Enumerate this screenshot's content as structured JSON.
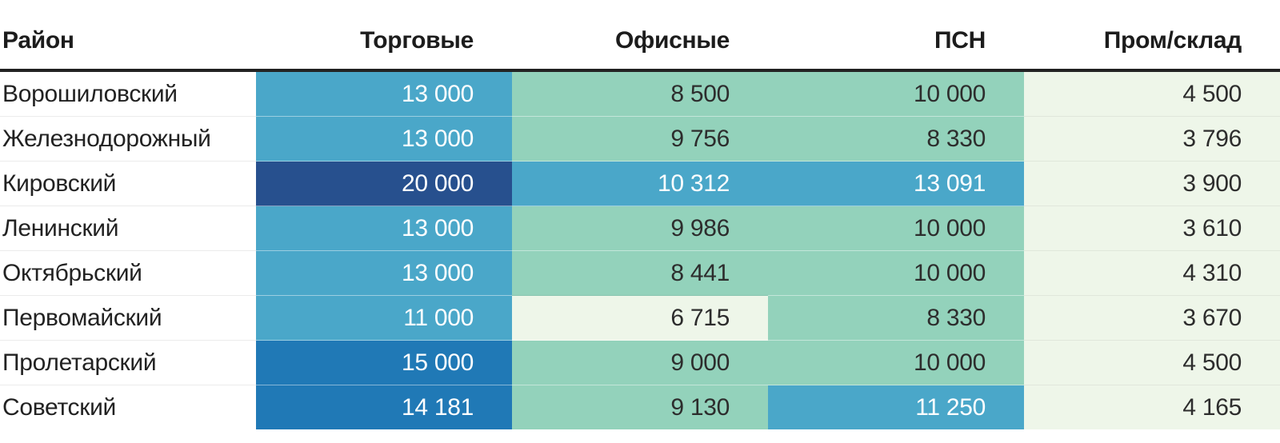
{
  "table": {
    "headers": [
      "Район",
      "Торговые",
      "Офисные",
      "ПСН",
      "Пром/склад"
    ],
    "rows": [
      {
        "district": "Ворошиловский",
        "cells": [
          {
            "value": "13 000",
            "bin": 3
          },
          {
            "value": "8 500",
            "bin": 2
          },
          {
            "value": "10 000",
            "bin": 2
          },
          {
            "value": "4 500",
            "bin": 1
          }
        ]
      },
      {
        "district": "Железнодорожный",
        "cells": [
          {
            "value": "13 000",
            "bin": 3
          },
          {
            "value": "9 756",
            "bin": 2
          },
          {
            "value": "8 330",
            "bin": 2
          },
          {
            "value": "3 796",
            "bin": 1
          }
        ]
      },
      {
        "district": "Кировский",
        "cells": [
          {
            "value": "20 000",
            "bin": 5
          },
          {
            "value": "10 312",
            "bin": 3
          },
          {
            "value": "13 091",
            "bin": 3
          },
          {
            "value": "3 900",
            "bin": 1
          }
        ]
      },
      {
        "district": "Ленинский",
        "cells": [
          {
            "value": "13 000",
            "bin": 3
          },
          {
            "value": "9 986",
            "bin": 2
          },
          {
            "value": "10 000",
            "bin": 2
          },
          {
            "value": "3 610",
            "bin": 1
          }
        ]
      },
      {
        "district": "Октябрьский",
        "cells": [
          {
            "value": "13 000",
            "bin": 3
          },
          {
            "value": "8 441",
            "bin": 2
          },
          {
            "value": "10 000",
            "bin": 2
          },
          {
            "value": "4 310",
            "bin": 1
          }
        ]
      },
      {
        "district": "Первомайский",
        "cells": [
          {
            "value": "11 000",
            "bin": 3
          },
          {
            "value": "6 715",
            "bin": 1
          },
          {
            "value": "8 330",
            "bin": 2
          },
          {
            "value": "3 670",
            "bin": 1
          }
        ]
      },
      {
        "district": "Пролетарский",
        "cells": [
          {
            "value": "15 000",
            "bin": 4
          },
          {
            "value": "9 000",
            "bin": 2
          },
          {
            "value": "10 000",
            "bin": 2
          },
          {
            "value": "4 500",
            "bin": 1
          }
        ]
      },
      {
        "district": "Советский",
        "cells": [
          {
            "value": "14 181",
            "bin": 4
          },
          {
            "value": "9 130",
            "bin": 2
          },
          {
            "value": "11 250",
            "bin": 3
          },
          {
            "value": "4 165",
            "bin": 1
          }
        ]
      }
    ]
  },
  "palette": {
    "bin1": "#eef6e9",
    "bin2": "#93d2bb",
    "bin3": "#4aa7c9",
    "bin4": "#2079b6",
    "bin5": "#27508e",
    "text_dark": "#2d2d2d",
    "text_light": "#ffffff",
    "header_rule": "#222222"
  },
  "chart_data": {
    "type": "heatmap",
    "title": "",
    "row_label_header": "Район",
    "columns": [
      "Торговые",
      "Офисные",
      "ПСН",
      "Пром/склад"
    ],
    "rows": [
      "Ворошиловский",
      "Железнодорожный",
      "Кировский",
      "Ленинский",
      "Октябрьский",
      "Первомайский",
      "Пролетарский",
      "Советский"
    ],
    "values": [
      [
        13000,
        8500,
        10000,
        4500
      ],
      [
        13000,
        9756,
        8330,
        3796
      ],
      [
        20000,
        10312,
        13091,
        3900
      ],
      [
        13000,
        9986,
        10000,
        3610
      ],
      [
        13000,
        8441,
        10000,
        4310
      ],
      [
        11000,
        6715,
        8330,
        3670
      ],
      [
        15000,
        9000,
        10000,
        4500
      ],
      [
        14181,
        9130,
        11250,
        4165
      ]
    ],
    "color_scale": {
      "kind": "binned low-to-high",
      "bins": [
        "#eef6e9",
        "#93d2bb",
        "#4aa7c9",
        "#2079b6",
        "#27508e"
      ],
      "value_range": [
        3610,
        20000
      ]
    },
    "legend": "none",
    "grid": "thin light row separators, thick dark rule under header"
  }
}
